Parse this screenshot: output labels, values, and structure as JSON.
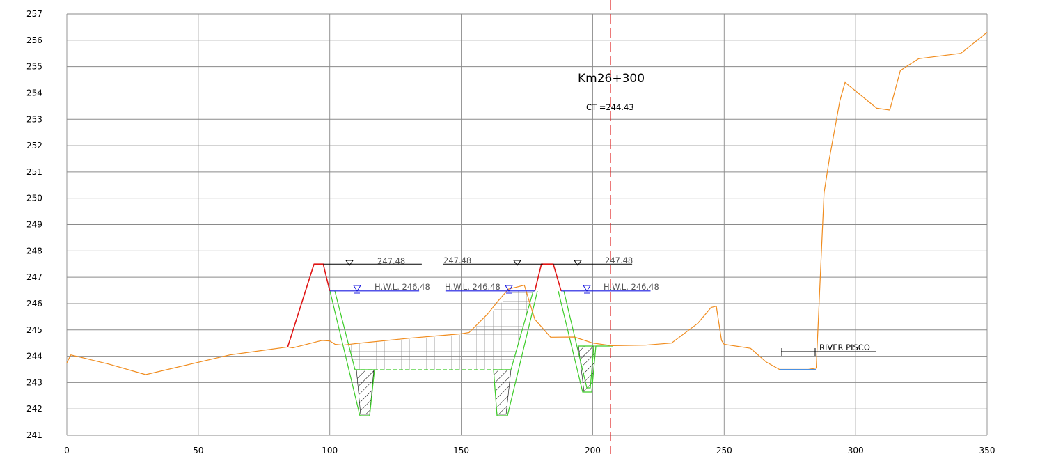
{
  "title": "Km26+300",
  "ct_label": "CT =244.43",
  "river_label": "RIVER PISCO",
  "hwl_labels": [
    "H.W.L. 246.48",
    "H.W.L. 246.48",
    "H.W.L. 246.48"
  ],
  "crest_labels": [
    "247.48",
    "247.48",
    "247.48"
  ],
  "chart_data": {
    "type": "line",
    "x_ticks": [
      "0",
      "50",
      "100",
      "150",
      "200",
      "250",
      "300",
      "350"
    ],
    "y_ticks": [
      "241",
      "242",
      "243",
      "244",
      "245",
      "246",
      "247",
      "248",
      "249",
      "250",
      "251",
      "252",
      "253",
      "254",
      "255",
      "256",
      "257"
    ],
    "xlim": [
      0,
      350
    ],
    "ylim": [
      241,
      257
    ],
    "center_line_x": 206.5,
    "colors": {
      "grid": "#8a8a8a",
      "ground": "#f08c1e",
      "embankment": "#e01515",
      "channel": "#3ccc28",
      "water": "#1a1ae0",
      "centerline": "#e02020",
      "riverbed": "#4a90e2"
    },
    "series": [
      {
        "role": "ground_profile",
        "points": [
          [
            0,
            243.75
          ],
          [
            1.5,
            244.05
          ],
          [
            16,
            243.7
          ],
          [
            30,
            243.3
          ],
          [
            62,
            244.05
          ],
          [
            84,
            244.35
          ],
          [
            86,
            244.32
          ],
          [
            88,
            244.37
          ],
          [
            97,
            244.6
          ],
          [
            100,
            244.58
          ],
          [
            102,
            244.45
          ],
          [
            105,
            244.42
          ],
          [
            110,
            244.48
          ],
          [
            130,
            244.68
          ],
          [
            150,
            244.85
          ],
          [
            153,
            244.9
          ],
          [
            160,
            245.6
          ],
          [
            164,
            246.1
          ],
          [
            168,
            246.55
          ],
          [
            172,
            246.65
          ],
          [
            174,
            246.7
          ],
          [
            178,
            245.4
          ],
          [
            184,
            244.72
          ],
          [
            193,
            244.73
          ],
          [
            200,
            244.5
          ],
          [
            207,
            244.4
          ],
          [
            220,
            244.42
          ],
          [
            230,
            244.5
          ],
          [
            240,
            245.25
          ],
          [
            245,
            245.85
          ],
          [
            247,
            245.9
          ],
          [
            249,
            244.6
          ],
          [
            250,
            244.45
          ],
          [
            260,
            244.3
          ],
          [
            266,
            243.78
          ],
          [
            271,
            243.5
          ],
          [
            282,
            243.5
          ],
          [
            285,
            243.55
          ],
          [
            288,
            250.2
          ],
          [
            290,
            251.5
          ],
          [
            294,
            253.7
          ],
          [
            296,
            254.4
          ],
          [
            308,
            253.42
          ],
          [
            313,
            253.35
          ],
          [
            317,
            254.85
          ],
          [
            324,
            255.3
          ],
          [
            340,
            255.5
          ],
          [
            350,
            256.3
          ]
        ]
      },
      {
        "role": "embankment_left",
        "points": [
          [
            84,
            244.35
          ],
          [
            94,
            247.5
          ],
          [
            97.5,
            247.5
          ],
          [
            100,
            246.48
          ]
        ]
      },
      {
        "role": "embankment_right",
        "points": [
          [
            178,
            246.48
          ],
          [
            180.5,
            247.5
          ],
          [
            185,
            247.5
          ],
          [
            188,
            246.48
          ]
        ]
      },
      {
        "role": "crest_line_left",
        "points": [
          [
            97.5,
            247.5
          ],
          [
            135,
            247.5
          ]
        ]
      },
      {
        "role": "crest_line_mid",
        "points": [
          [
            143,
            247.5
          ],
          [
            181,
            247.5
          ]
        ]
      },
      {
        "role": "crest_line_right",
        "points": [
          [
            185,
            247.5
          ],
          [
            215,
            247.5
          ]
        ]
      },
      {
        "role": "hwl_line_left",
        "points": [
          [
            100,
            246.48
          ],
          [
            134,
            246.48
          ]
        ]
      },
      {
        "role": "hwl_line_mid",
        "points": [
          [
            144,
            246.48
          ],
          [
            178,
            246.48
          ]
        ]
      },
      {
        "role": "hwl_line_right",
        "points": [
          [
            188,
            246.48
          ],
          [
            222,
            246.48
          ]
        ]
      }
    ]
  }
}
